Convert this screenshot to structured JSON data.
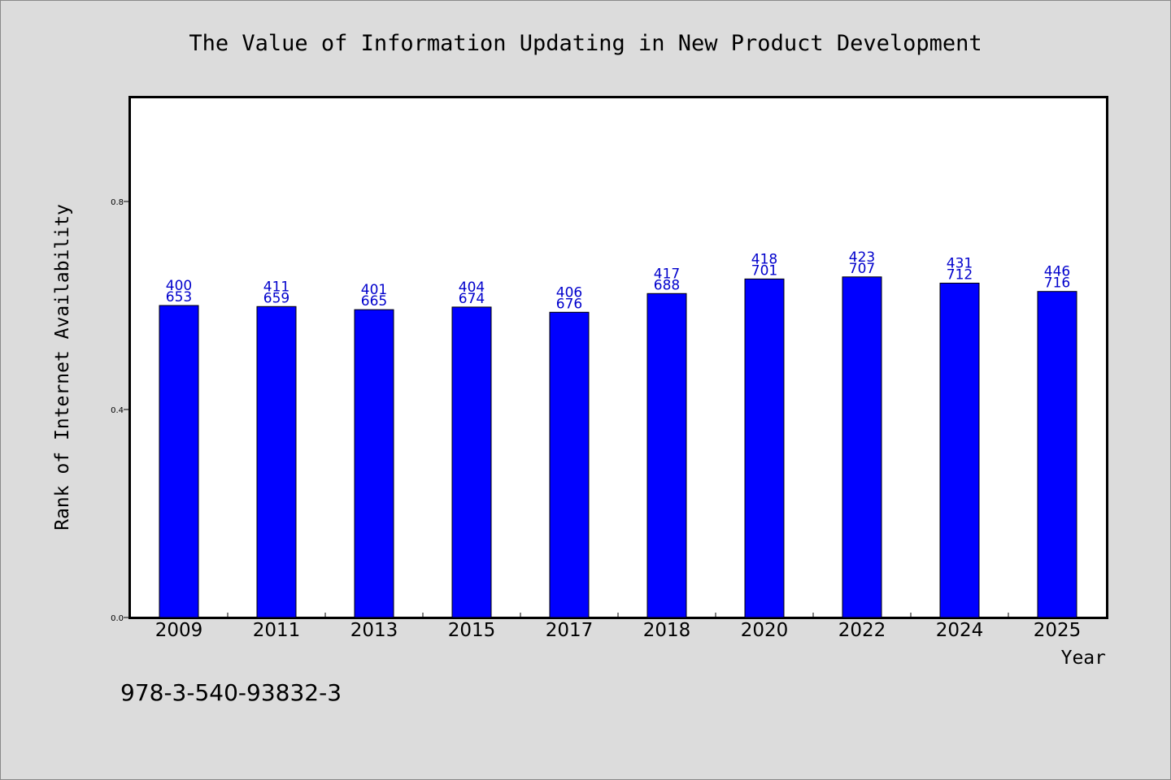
{
  "chart_data": {
    "type": "bar",
    "title": "The Value of Information Updating in New Product Development",
    "xlabel": "Year",
    "ylabel": "Rank of Internet Availability",
    "footer": "978-3-540-93832-3",
    "categories": [
      "2009",
      "2011",
      "2013",
      "2015",
      "2017",
      "2018",
      "2020",
      "2022",
      "2024",
      "2025"
    ],
    "values": [
      0.6,
      0.598,
      0.592,
      0.597,
      0.587,
      0.623,
      0.651,
      0.655,
      0.643,
      0.627
    ],
    "labels_top": [
      "400",
      "411",
      "401",
      "404",
      "406",
      "417",
      "418",
      "423",
      "431",
      "446"
    ],
    "labels_bottom": [
      "653",
      "659",
      "665",
      "674",
      "676",
      "688",
      "701",
      "707",
      "712",
      "716"
    ],
    "ylim": [
      0,
      1.0
    ],
    "yticks": [
      0.0,
      0.4,
      0.8
    ],
    "ytick_labels": [
      "0.0",
      "0.4",
      "0.8"
    ],
    "grid": false,
    "bar_color": "#0000ff",
    "label_color": "#0000cc"
  }
}
